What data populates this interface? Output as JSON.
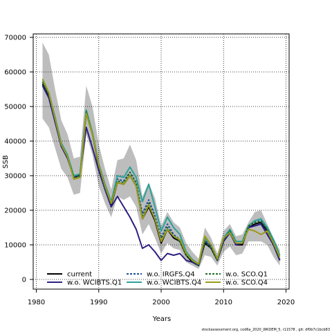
{
  "chart_data": {
    "type": "line",
    "xlabel": "Years",
    "ylabel": "SSB",
    "xlim": [
      1979.5,
      2020.5
    ],
    "ylim": [
      -2800,
      71000
    ],
    "x_ticks": [
      1980,
      1990,
      2000,
      2010,
      2020
    ],
    "y_ticks": [
      0,
      10000,
      20000,
      30000,
      40000,
      50000,
      60000,
      70000
    ],
    "grid": "dotted",
    "legend_position": "bottom-left",
    "footnote": "stockassessment.org, cod6a_2020_WKDEM_5, r11578 , git: df0b7c1bcb83",
    "x": [
      1981,
      1982,
      1983,
      1984,
      1985,
      1986,
      1987,
      1988,
      1989,
      1990,
      1991,
      1992,
      1993,
      1994,
      1995,
      1996,
      1997,
      1998,
      1999,
      2000,
      2001,
      2002,
      2003,
      2004,
      2005,
      2006,
      2007,
      2008,
      2009,
      2010,
      2011,
      2012,
      2013,
      2014,
      2015,
      2016,
      2017,
      2018,
      2019
    ],
    "confidence_band": {
      "upper": [
        68500,
        65000,
        55000,
        46000,
        42000,
        35000,
        35500,
        56000,
        50000,
        39000,
        32000,
        26000,
        34500,
        35000,
        39000,
        34500,
        24000,
        28000,
        23500,
        15500,
        19500,
        16500,
        15000,
        10500,
        8000,
        6000,
        15000,
        12000,
        7500,
        14000,
        16000,
        12500,
        13000,
        16500,
        19500,
        20000,
        16000,
        12000,
        8500
      ],
      "lower": [
        46500,
        44000,
        38000,
        32000,
        29500,
        24500,
        25000,
        42000,
        36000,
        27000,
        22000,
        18000,
        24000,
        23000,
        24000,
        21000,
        13000,
        16000,
        12000,
        7500,
        10500,
        9000,
        8500,
        5000,
        4000,
        3000,
        7000,
        6500,
        4000,
        8000,
        9500,
        7000,
        7500,
        11000,
        11000,
        11000,
        10000,
        6500,
        4000
      ]
    },
    "series": [
      {
        "name": "current",
        "color": "#000000",
        "dash": "solid",
        "values": [
          56500,
          53000,
          46000,
          38500,
          35500,
          29500,
          30000,
          48000,
          42000,
          32500,
          26500,
          21500,
          28000,
          27500,
          30000,
          27000,
          17500,
          21000,
          17000,
          10500,
          14500,
          12000,
          11000,
          7000,
          5000,
          4000,
          10500,
          9000,
          5500,
          11000,
          13500,
          10000,
          10000,
          15000,
          16000,
          16500,
          14000,
          10000,
          5500
        ]
      },
      {
        "name": "w.o. WCIBTS.Q1",
        "color": "#2b1f80",
        "dash": "solid",
        "values": [
          56000,
          52500,
          45500,
          38500,
          35000,
          29500,
          30500,
          44000,
          38000,
          31500,
          26000,
          21000,
          24000,
          21000,
          18000,
          14500,
          9000,
          10000,
          8000,
          5500,
          7500,
          7000,
          7500,
          5500,
          5000,
          4000,
          11000,
          9500,
          5500,
          11000,
          13500,
          10000,
          10500,
          15000,
          15500,
          16000,
          13000,
          10000,
          5500
        ]
      },
      {
        "name": "w.o. IRGFS.Q4",
        "color": "#1f4fa0",
        "dash": "dashed",
        "values": [
          57000,
          53500,
          46500,
          39000,
          35500,
          29500,
          30000,
          48500,
          42000,
          33000,
          26500,
          22000,
          29000,
          28500,
          31000,
          28000,
          19000,
          23000,
          18500,
          12000,
          16000,
          13000,
          11500,
          7500,
          5500,
          4500,
          11500,
          9500,
          6000,
          11500,
          14000,
          10500,
          10500,
          15500,
          16500,
          17000,
          14500,
          11000,
          6500
        ]
      },
      {
        "name": "w.o. WCIBTS.Q4",
        "color": "#2aa198",
        "dash": "solid",
        "values": [
          57500,
          54000,
          47000,
          39500,
          36000,
          30000,
          30500,
          49000,
          42500,
          33500,
          27500,
          22500,
          30000,
          29500,
          32500,
          29500,
          22500,
          27500,
          21000,
          14000,
          18000,
          15000,
          13000,
          8000,
          5800,
          4500,
          12000,
          10000,
          6000,
          12000,
          14500,
          11000,
          11000,
          15500,
          17000,
          17500,
          15000,
          11500,
          7000
        ]
      },
      {
        "name": "w.o. SCO.Q1",
        "color": "#1f6b2a",
        "dash": "dashed",
        "values": [
          57000,
          53500,
          46500,
          39000,
          35500,
          29500,
          30000,
          48500,
          42000,
          33000,
          27000,
          22000,
          28500,
          28000,
          31000,
          28000,
          18000,
          22000,
          17500,
          11500,
          15000,
          12500,
          11000,
          7000,
          5500,
          4000,
          11000,
          9000,
          5500,
          11500,
          14000,
          10500,
          10500,
          15500,
          16500,
          16800,
          14500,
          10500,
          6000
        ]
      },
      {
        "name": "w.o. SCO.Q4",
        "color": "#9b9b1a",
        "dash": "solid",
        "values": [
          58000,
          54000,
          46500,
          39000,
          35500,
          29000,
          29500,
          48000,
          42000,
          33000,
          27000,
          22000,
          28000,
          27500,
          30000,
          27000,
          17500,
          21500,
          17500,
          11000,
          14500,
          12500,
          11500,
          7500,
          5500,
          4500,
          12500,
          10000,
          6000,
          12000,
          13500,
          10500,
          10500,
          14500,
          14000,
          13000,
          14000,
          10500,
          6500
        ]
      }
    ]
  }
}
